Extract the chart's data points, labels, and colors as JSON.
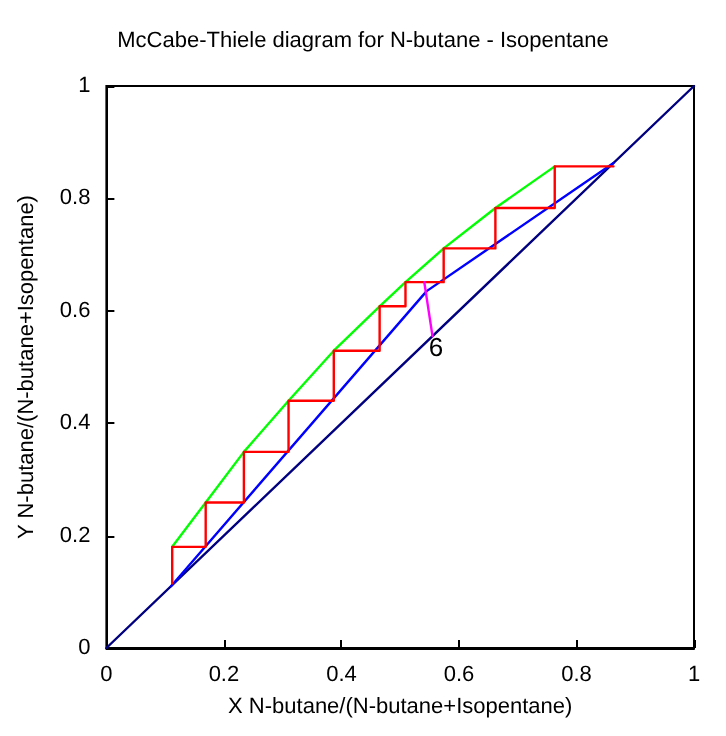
{
  "chart_data": {
    "type": "line",
    "title": "McCabe-Thiele diagram for N-butane - Isopentane",
    "xlabel": "X N-butane/(N-butane+Isopentane)",
    "ylabel": "Y N-butane/(N-butane+Isopentane)",
    "xlim": [
      0,
      1
    ],
    "ylim": [
      0,
      1
    ],
    "xticks": [
      0,
      0.2,
      0.4,
      0.6,
      0.8,
      1
    ],
    "yticks": [
      0,
      0.2,
      0.4,
      0.6,
      0.8,
      1
    ],
    "marker": "none",
    "line_style": "solid",
    "annotations": [
      {
        "text": "6",
        "x": 0.561,
        "y": 0.536
      }
    ],
    "series": [
      {
        "color": "#000080",
        "x": [
          0,
          1
        ],
        "values": [
          0,
          1
        ]
      },
      {
        "color": "#0000ff",
        "x": [
          0.11,
          0.545,
          0.863
        ],
        "values": [
          0.11,
          0.635,
          0.863
        ]
      },
      {
        "color": "#00ff00",
        "x": [
          0.112,
          0.169,
          0.234,
          0.31,
          0.387,
          0.465,
          0.509,
          0.574,
          0.662,
          0.763
        ],
        "values": [
          0.18,
          0.259,
          0.349,
          0.44,
          0.529,
          0.608,
          0.651,
          0.711,
          0.783,
          0.857
        ]
      },
      {
        "color": "#ff0000",
        "x": [
          0.112,
          0.112,
          0.169,
          0.169,
          0.234,
          0.234,
          0.31,
          0.31,
          0.387,
          0.387,
          0.465,
          0.465,
          0.509,
          0.509,
          0.574,
          0.574,
          0.662,
          0.662,
          0.763,
          0.763,
          0.863
        ],
        "values": [
          0.115,
          0.18,
          0.18,
          0.259,
          0.259,
          0.349,
          0.349,
          0.44,
          0.44,
          0.529,
          0.529,
          0.608,
          0.608,
          0.651,
          0.651,
          0.711,
          0.711,
          0.783,
          0.783,
          0.857,
          0.857
        ]
      },
      {
        "color": "#ff00ff",
        "x": [
          0.555,
          0.541
        ],
        "values": [
          0.555,
          0.651
        ]
      }
    ]
  }
}
